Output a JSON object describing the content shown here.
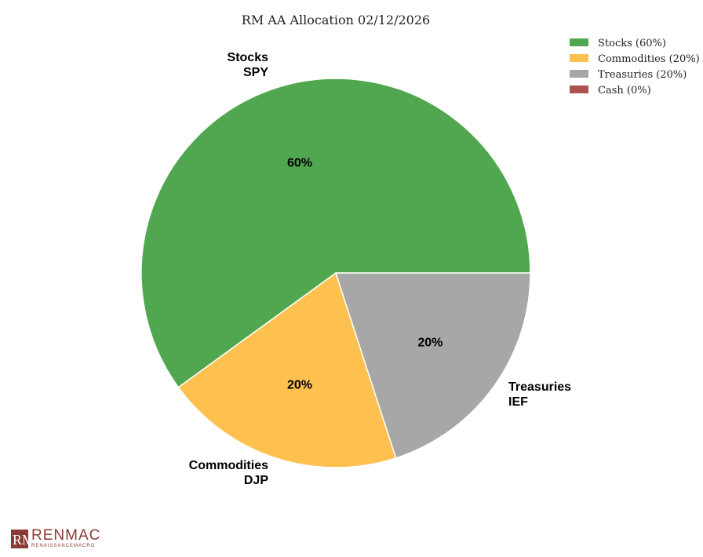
{
  "chart_data": {
    "type": "pie",
    "title": "RM AA Allocation 02/12/2026",
    "legend_position": "top-right",
    "slices": [
      {
        "category": "Stocks",
        "ticker": "SPY",
        "value": 60,
        "percent_label": "60%",
        "legend_label": "Stocks (60%)",
        "color": "#51a74f"
      },
      {
        "category": "Commodities",
        "ticker": "DJP",
        "value": 20,
        "percent_label": "20%",
        "legend_label": "Commodities (20%)",
        "color": "#fec04f"
      },
      {
        "category": "Treasuries",
        "ticker": "IEF",
        "value": 20,
        "percent_label": "20%",
        "legend_label": "Treasuries (20%)",
        "color": "#a7a7a7"
      },
      {
        "category": "Cash",
        "ticker": "",
        "value": 0,
        "percent_label": "0%",
        "legend_label": "Cash (0%)",
        "color": "#aa5251"
      }
    ]
  },
  "branding": {
    "logo_mark": "RM",
    "logo_name": "RENMAC",
    "logo_tagline": "RENAISSANCEMACRO",
    "logo_color": "#8a3a35"
  }
}
